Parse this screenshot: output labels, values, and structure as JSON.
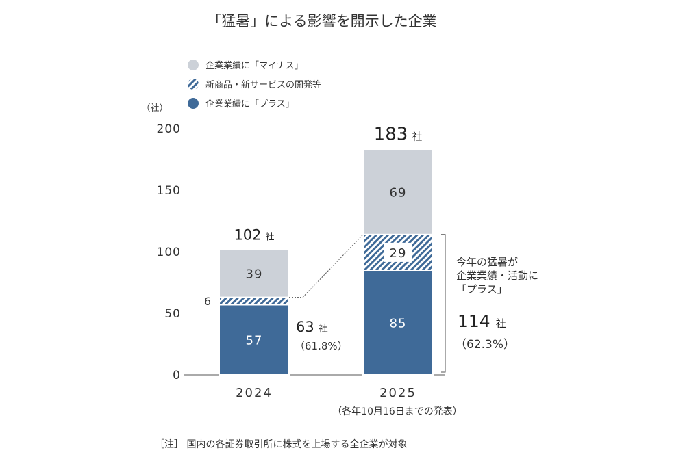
{
  "chart_data": {
    "type": "bar",
    "stacked": true,
    "title": "「猛暑」による影響を開示した企業",
    "unit": "（社）",
    "categories": [
      "2024",
      "2025"
    ],
    "xnote": "（各年10月16日までの発表）",
    "ylim": [
      0,
      200
    ],
    "yticks": [
      0,
      50,
      100,
      150,
      200
    ],
    "series": [
      {
        "name": "企業業績に「プラス」",
        "values": [
          57,
          85
        ],
        "color": "#3f6a98",
        "pattern": "solid"
      },
      {
        "name": "新商品・新サービスの開発等",
        "values": [
          6,
          29
        ],
        "color": "#3f6a98",
        "pattern": "hatch"
      },
      {
        "name": "企業業績に「マイナス」",
        "values": [
          39,
          69
        ],
        "color": "#ccd1d8",
        "pattern": "solid"
      }
    ],
    "totals": [
      "102",
      "183"
    ],
    "totals_unit": "社",
    "subtotals": [
      {
        "value": "63",
        "unit": "社",
        "pct": "（61.8%）"
      },
      {
        "value": "114",
        "unit": "社",
        "pct": "（62.3%）"
      }
    ],
    "bracket_label_lines": [
      "今年の猛暑が",
      "企業業績・活動に",
      "「プラス」"
    ],
    "legend_order": [
      2,
      1,
      0
    ],
    "note": "［注］ 国内の各証券取引所に株式を上場する全企業が対象"
  }
}
